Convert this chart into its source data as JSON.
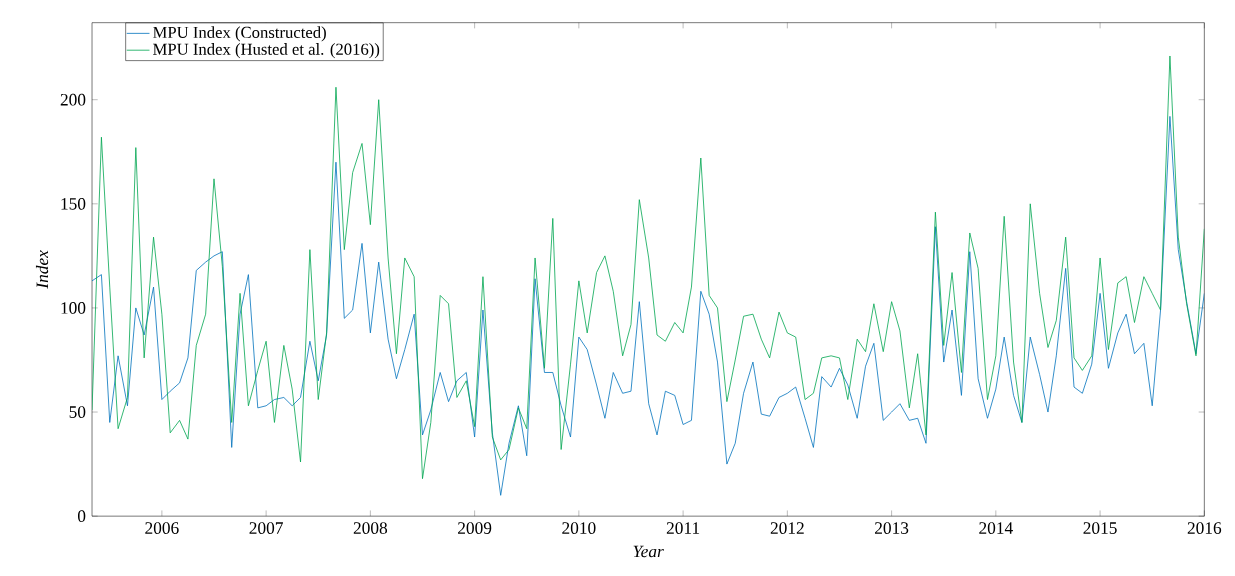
{
  "chart_data": {
    "type": "line",
    "xlabel": "Year",
    "ylabel": "Index",
    "x": [
      "2005-05",
      "2005-06",
      "2005-07",
      "2005-08",
      "2005-09",
      "2005-10",
      "2005-11",
      "2005-12",
      "2006-01",
      "2006-02",
      "2006-03",
      "2006-04",
      "2006-05",
      "2006-06",
      "2006-07",
      "2006-08",
      "2006-09",
      "2006-10",
      "2006-11",
      "2006-12",
      "2007-01",
      "2007-02",
      "2007-03",
      "2007-04",
      "2007-05",
      "2007-06",
      "2007-07",
      "2007-08",
      "2007-09",
      "2007-10",
      "2007-11",
      "2007-12",
      "2008-01",
      "2008-02",
      "2008-03",
      "2008-04",
      "2008-05",
      "2008-06",
      "2008-07",
      "2008-08",
      "2008-09",
      "2008-10",
      "2008-11",
      "2008-12",
      "2009-01",
      "2009-02",
      "2009-03",
      "2009-04",
      "2009-05",
      "2009-06",
      "2009-07",
      "2009-08",
      "2009-09",
      "2009-10",
      "2009-11",
      "2009-12",
      "2010-01",
      "2010-02",
      "2010-03",
      "2010-04",
      "2010-05",
      "2010-06",
      "2010-07",
      "2010-08",
      "2010-09",
      "2010-10",
      "2010-11",
      "2010-12",
      "2011-01",
      "2011-02",
      "2011-03",
      "2011-04",
      "2011-05",
      "2011-06",
      "2011-07",
      "2011-08",
      "2011-09",
      "2011-10",
      "2011-11",
      "2011-12",
      "2012-01",
      "2012-02",
      "2012-03",
      "2012-04",
      "2012-05",
      "2012-06",
      "2012-07",
      "2012-08",
      "2012-09",
      "2012-10",
      "2012-11",
      "2012-12",
      "2013-01",
      "2013-02",
      "2013-03",
      "2013-04",
      "2013-05",
      "2013-06",
      "2013-07",
      "2013-08",
      "2013-09",
      "2013-10",
      "2013-11",
      "2013-12",
      "2014-01",
      "2014-02",
      "2014-03",
      "2014-04",
      "2014-05",
      "2014-06",
      "2014-07",
      "2014-08",
      "2014-09",
      "2014-10",
      "2014-11",
      "2014-12",
      "2015-01",
      "2015-02",
      "2015-03",
      "2015-04",
      "2015-05",
      "2015-06",
      "2015-07",
      "2015-08",
      "2015-09",
      "2015-10",
      "2015-11",
      "2015-12",
      "2016-01"
    ],
    "series": [
      {
        "name": "MPU Index (Constructed)",
        "color": "#0072bd",
        "values": [
          113,
          116,
          45,
          77,
          53,
          100,
          87,
          110,
          56,
          60,
          64,
          76,
          118,
          122,
          125,
          127,
          33,
          97,
          116,
          52,
          53,
          56,
          57,
          53,
          57,
          84,
          65,
          87,
          170,
          95,
          99,
          131,
          88,
          122,
          85,
          66,
          80,
          97,
          39,
          51,
          69,
          55,
          65,
          69,
          38,
          99,
          40,
          10,
          35,
          53,
          29,
          114,
          69,
          69,
          53,
          38,
          86,
          80,
          63,
          47,
          69,
          59,
          60,
          103,
          54,
          39,
          60,
          58,
          44,
          46,
          108,
          97,
          74,
          25,
          35,
          59,
          74,
          49,
          48,
          57,
          59,
          62,
          47,
          33,
          67,
          62,
          71,
          63,
          47,
          72,
          83,
          46,
          50,
          54,
          46,
          47,
          35,
          139,
          74,
          99,
          58,
          127,
          66,
          47,
          61,
          86,
          58,
          45,
          86,
          68,
          50,
          77,
          119,
          62,
          59,
          73,
          107,
          71,
          88,
          97,
          78,
          83,
          53,
          99,
          192,
          128,
          103,
          78,
          107
        ]
      },
      {
        "name": "MPU Index (Husted et al. (2016))",
        "color": "#00a650",
        "values": [
          51,
          182,
          110,
          42,
          57,
          177,
          76,
          134,
          97,
          40,
          46,
          37,
          82,
          97,
          162,
          120,
          45,
          107,
          53,
          70,
          84,
          45,
          82,
          61,
          26,
          128,
          56,
          88,
          206,
          128,
          165,
          179,
          140,
          200,
          124,
          78,
          124,
          115,
          18,
          45,
          106,
          102,
          57,
          65,
          43,
          115,
          38,
          27,
          32,
          52,
          42,
          124,
          71,
          143,
          32,
          73,
          113,
          88,
          117,
          125,
          108,
          77,
          92,
          152,
          124,
          87,
          84,
          93,
          88,
          110,
          172,
          106,
          100,
          55,
          75,
          96,
          97,
          85,
          76,
          98,
          88,
          86,
          56,
          59,
          76,
          77,
          76,
          56,
          85,
          79,
          102,
          79,
          103,
          89,
          52,
          78,
          39,
          146,
          82,
          117,
          69,
          136,
          119,
          56,
          77,
          144,
          74,
          45,
          150,
          107,
          81,
          94,
          134,
          76,
          70,
          77,
          124,
          80,
          112,
          115,
          93,
          115,
          107,
          99,
          221,
          134,
          102,
          77,
          138
        ]
      }
    ],
    "xlim": [
      "2005-05",
      "2016-01"
    ],
    "xticks": [
      {
        "value": "2006-01",
        "label": "2006"
      },
      {
        "value": "2007-01",
        "label": "2007"
      },
      {
        "value": "2008-01",
        "label": "2008"
      },
      {
        "value": "2009-01",
        "label": "2009"
      },
      {
        "value": "2010-01",
        "label": "2010"
      },
      {
        "value": "2011-01",
        "label": "2011"
      },
      {
        "value": "2012-01",
        "label": "2012"
      },
      {
        "value": "2013-01",
        "label": "2013"
      },
      {
        "value": "2014-01",
        "label": "2014"
      },
      {
        "value": "2015-01",
        "label": "2015"
      },
      {
        "value": "2016-01",
        "label": "2016"
      }
    ],
    "ylim": [
      0,
      237
    ],
    "yticks": [
      0,
      50,
      100,
      150,
      200
    ],
    "legend": "top left",
    "grid": false,
    "line_style": "solid"
  }
}
